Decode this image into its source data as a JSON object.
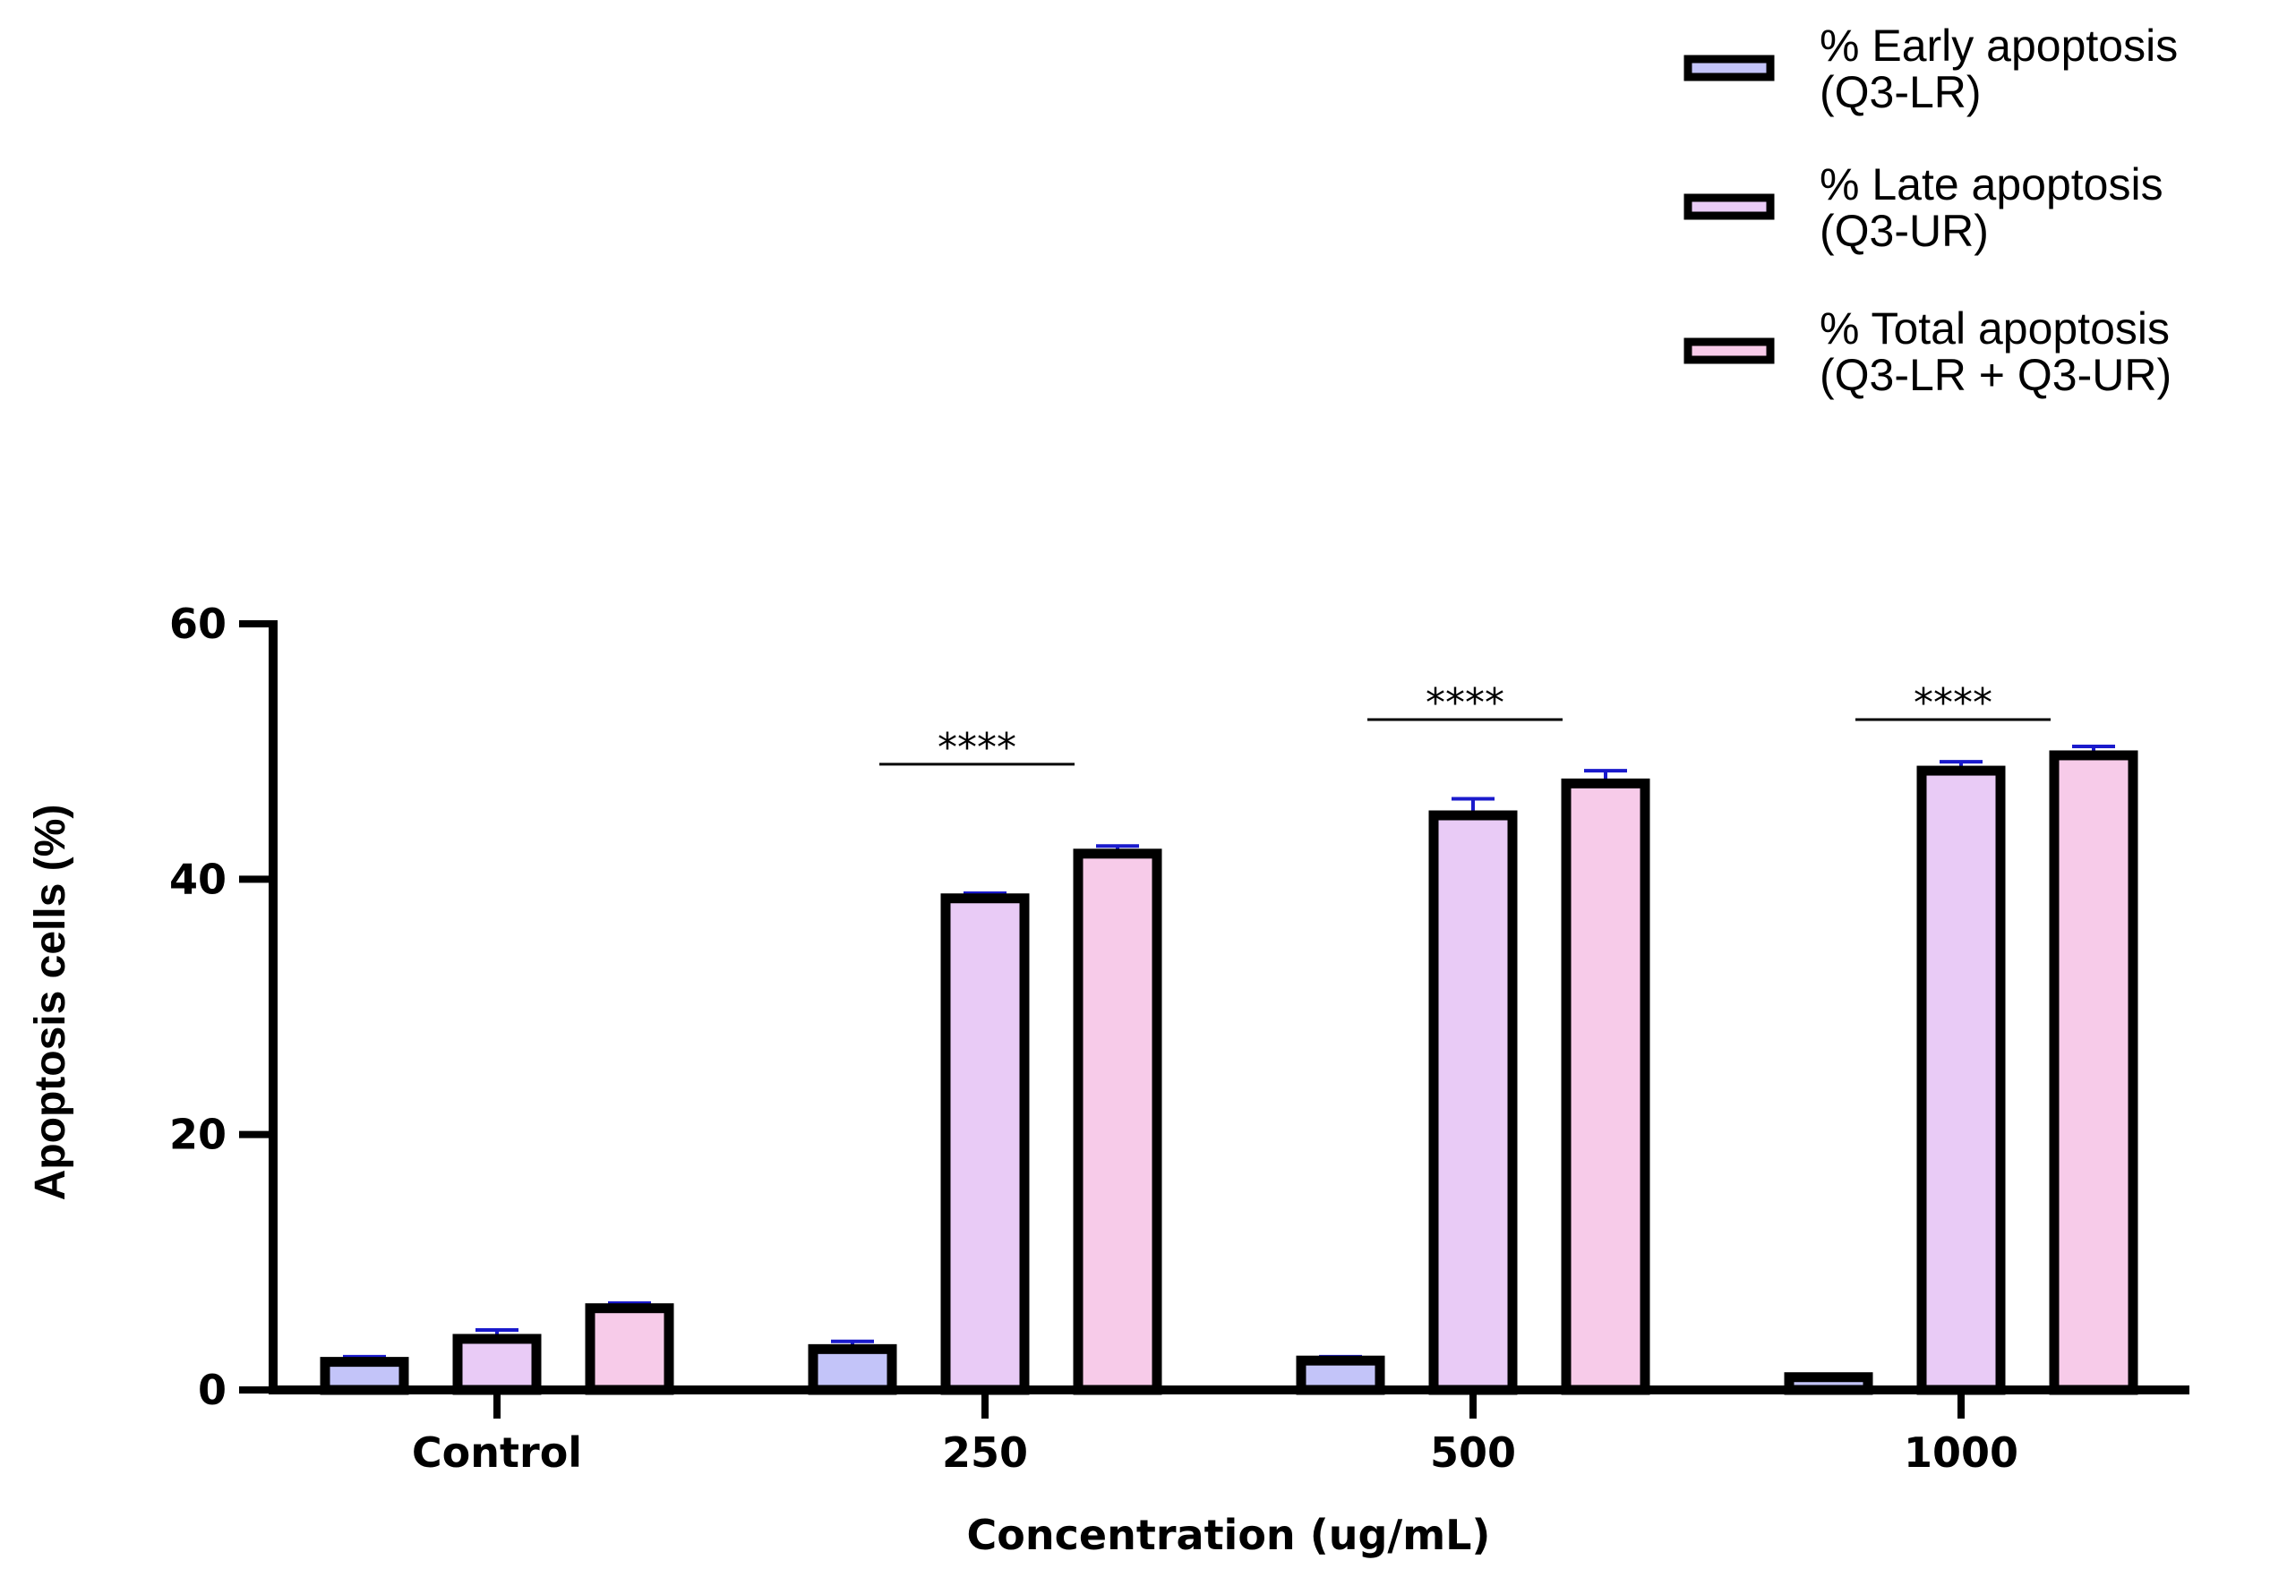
{
  "chart_data": {
    "type": "bar",
    "title": "",
    "xlabel": "Concentration (ug/mL)",
    "ylabel": "Apoptosis cells (%)",
    "ylim": [
      0,
      60
    ],
    "yticks": [
      0,
      20,
      40,
      60
    ],
    "categories": [
      "Control",
      "250",
      "500",
      "1000"
    ],
    "series": [
      {
        "name": "% Early apoptosis (Q3-LR)",
        "legend_lines": [
          "% Early apoptosis",
          "(Q3-LR)"
        ],
        "color": "#c3c4f9",
        "values": [
          2.2,
          3.2,
          2.3,
          1.0
        ],
        "errors": [
          0.4,
          0.6,
          0.3,
          0.2
        ]
      },
      {
        "name": "% Late apoptosis (Q3-UR)",
        "legend_lines": [
          "%  Late apoptosis",
          "(Q3-UR)"
        ],
        "color": "#e9cbf6",
        "values": [
          4.0,
          38.5,
          45.0,
          48.5
        ],
        "errors": [
          0.7,
          0.4,
          1.3,
          0.7
        ]
      },
      {
        "name": "% Total apoptosis (Q3-LR + Q3-UR)",
        "legend_lines": [
          "%  Total apoptosis",
          "(Q3-LR + Q3-UR)"
        ],
        "color": "#f7cbe9",
        "values": [
          6.4,
          42.0,
          47.5,
          49.7
        ],
        "errors": [
          0.4,
          0.6,
          1.0,
          0.7
        ]
      }
    ],
    "error_bar_color": "#1a1acc",
    "significance": [
      {
        "category": "250",
        "label": "****",
        "y": 49
      },
      {
        "category": "500",
        "label": "****",
        "y": 52.5
      },
      {
        "category": "1000",
        "label": "****",
        "y": 52.5
      }
    ],
    "legend_position": "top-right"
  }
}
